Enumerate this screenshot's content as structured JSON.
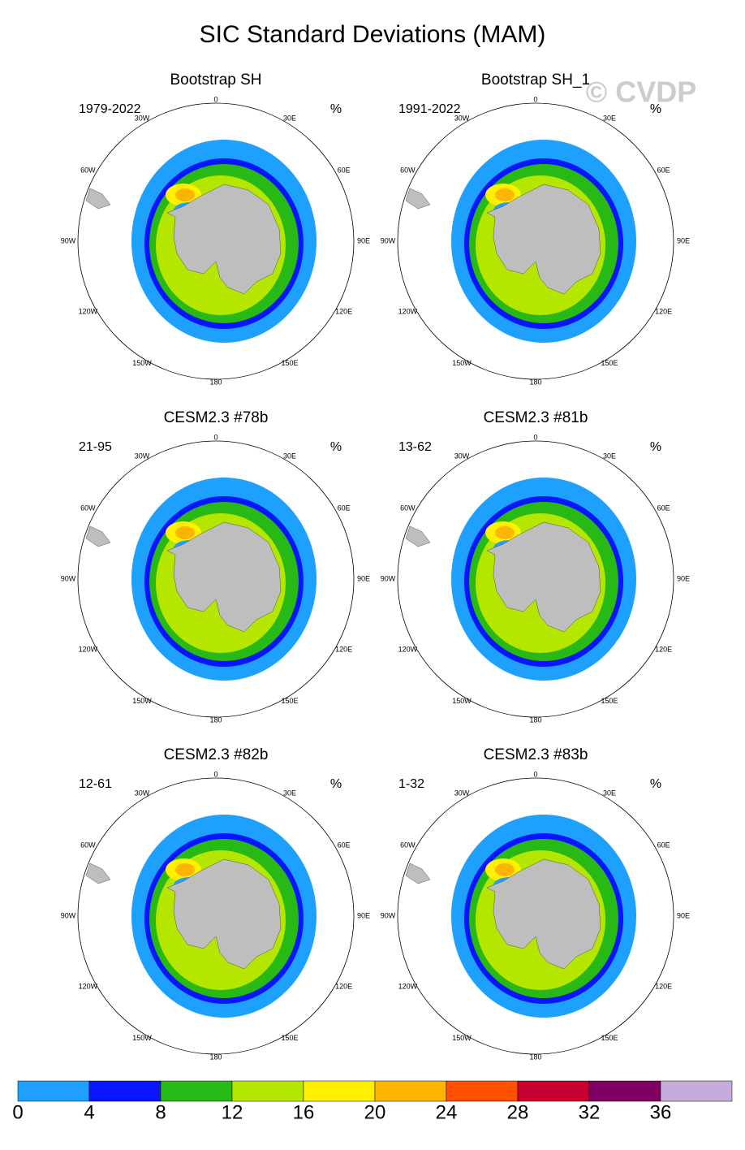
{
  "title": "SIC Standard Deviations (MAM)",
  "watermark": "© CVDP",
  "panels": [
    {
      "title": "Bootstrap SH",
      "period": "1979-2022",
      "unit": "%"
    },
    {
      "title": "Bootstrap SH_1",
      "period": "1991-2022",
      "unit": "%"
    },
    {
      "title": "CESM2.3 #78b",
      "period": "21-95",
      "unit": "%"
    },
    {
      "title": "CESM2.3 #81b",
      "period": "13-62",
      "unit": "%"
    },
    {
      "title": "CESM2.3 #82b",
      "period": "12-61",
      "unit": "%"
    },
    {
      "title": "CESM2.3 #83b",
      "period": "1-32",
      "unit": "%"
    }
  ],
  "longitude_labels": [
    "0",
    "30E",
    "60E",
    "90E",
    "120E",
    "150E",
    "180",
    "150W",
    "120W",
    "90W",
    "60W",
    "30W"
  ],
  "colorbar": {
    "colors": [
      "#1ea0ff",
      "#0a14ff",
      "#28b914",
      "#b4e600",
      "#fff000",
      "#ffb400",
      "#ff5000",
      "#c80032",
      "#800064",
      "#c8aadc"
    ],
    "ticks": [
      0,
      4,
      8,
      12,
      16,
      20,
      24,
      28,
      32,
      36
    ]
  }
}
